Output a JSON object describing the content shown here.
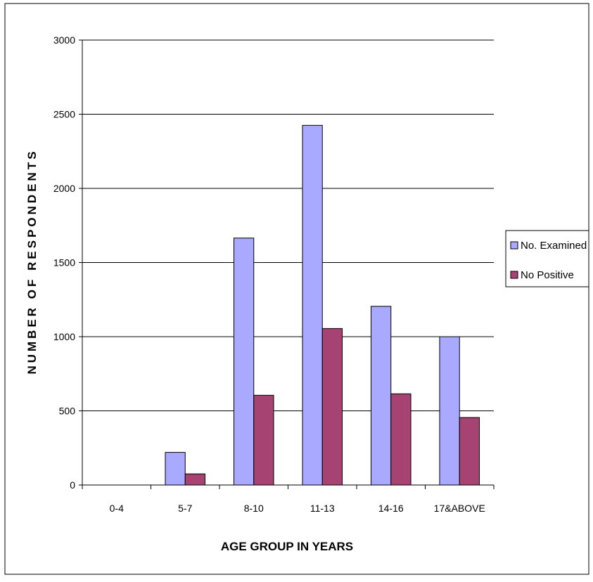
{
  "chart_data": {
    "type": "bar",
    "title": "",
    "xlabel": "AGE GROUP IN YEARS",
    "ylabel": "NUMBER OF RESPONDENTS",
    "ylim": [
      0,
      3000
    ],
    "yticks": [
      "0",
      "500",
      "1000",
      "1500",
      "2000",
      "2500",
      "3000"
    ],
    "categories": [
      "0-4",
      "5-7",
      "8-10",
      "11-13",
      "14-16",
      "17&ABOVE"
    ],
    "series": [
      {
        "name": "No. Examined",
        "color": "#a9a9ff",
        "values": [
          0,
          220,
          1665,
          2425,
          1205,
          1000
        ]
      },
      {
        "name": "No Positive",
        "color": "#a64372",
        "values": [
          0,
          75,
          605,
          1055,
          615,
          455
        ]
      }
    ],
    "grid": true,
    "legend": "right"
  }
}
